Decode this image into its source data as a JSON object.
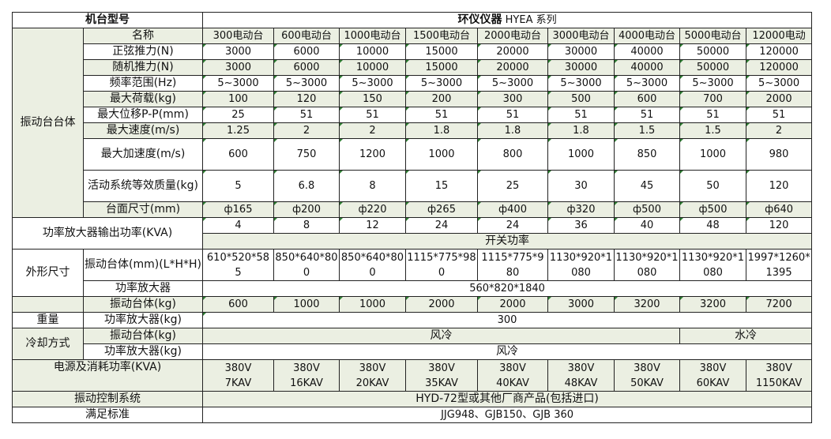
{
  "header": {
    "model_label": "机台型号",
    "series_title_bold": "环仪仪器",
    "series_title_rest": " HYEA 系列"
  },
  "section_shaker": "振动台台体",
  "name_label": "名称",
  "models": [
    "300电动台",
    "600电动台",
    "1000电动台",
    "1500电动台",
    "2000电动台",
    "3000电动台",
    "4000电动台",
    "5000电动台",
    "12000电动"
  ],
  "specs": [
    {
      "label": "正弦推力(N)",
      "values": [
        "3000",
        "6000",
        "10000",
        "15000",
        "20000",
        "30000",
        "40000",
        "50000",
        "120000"
      ]
    },
    {
      "label": "随机推力(N)",
      "values": [
        "3000",
        "6000",
        "10000",
        "15000",
        "20000",
        "30000",
        "40000",
        "50000",
        "120000"
      ]
    },
    {
      "label": "频率范围(Hz)",
      "values": [
        "5~3000",
        "5~3000",
        "5~3000",
        "5~3000",
        "5~3000",
        "5~3000",
        "5~3000",
        "5~3000",
        "5~3000"
      ]
    },
    {
      "label": "最大荷载(kg)",
      "values": [
        "100",
        "120",
        "150",
        "200",
        "300",
        "500",
        "600",
        "700",
        "2000"
      ]
    },
    {
      "label": "最大位移P-P(mm)",
      "values": [
        "25",
        "51",
        "51",
        "51",
        "51",
        "51",
        "51",
        "51",
        "51"
      ]
    },
    {
      "label": "最大速度(m/s)",
      "values": [
        "1.25",
        "2",
        "2",
        "1.8",
        "1.8",
        "1.8",
        "1.5",
        "1.5",
        "2"
      ]
    },
    {
      "label": "最大加速度(m/s)",
      "values": [
        "600",
        "750",
        "1200",
        "1000",
        "800",
        "1000",
        "850",
        "1000",
        "980"
      ]
    },
    {
      "label": "活动系统等效质量(kg)",
      "values": [
        "5",
        "6.8",
        "8",
        "15",
        "25",
        "30",
        "45",
        "50",
        "120"
      ]
    },
    {
      "label": "台面尺寸(mm)",
      "values": [
        "ф165",
        "ф200",
        "ф220",
        "ф265",
        "ф400",
        "ф320",
        "ф500",
        "ф500",
        "ф640"
      ]
    }
  ],
  "amp_power": {
    "label": "功率放大器输出功率(KVA)",
    "values": [
      "4",
      "8",
      "12",
      "24",
      "24",
      "36",
      "40",
      "48",
      "120"
    ],
    "type": "开关功率"
  },
  "dimensions": {
    "label": "外形尺寸",
    "shaker_label": "振动台体(mm)(L*H*H)",
    "shaker_values": [
      "610*520*585",
      "850*640*800",
      "850*640*800",
      "1115*775*980",
      "1115*775*980",
      "1130*920*1080",
      "1130*920*1080",
      "1130*920*1080",
      "1997*1260*1395"
    ],
    "amp_label": "功率放大器",
    "amp_value": "560*820*1840"
  },
  "weight": {
    "label": "重量",
    "shaker_label": "振动台体(kg)",
    "shaker_values": [
      "600",
      "1000",
      "1000",
      "2000",
      "2000",
      "3000",
      "3200",
      "3200",
      "7200"
    ],
    "amp_label": "功率放大器(kg)",
    "amp_value": "300"
  },
  "cooling": {
    "label": "冷却方式",
    "shaker_label": "振动台体(kg)",
    "shaker_air": "风冷",
    "shaker_water": "水冷",
    "amp_label": "功率放大器(kg)",
    "amp_value": "风冷"
  },
  "power_supply": {
    "label": "电源及消耗功率(KVA)",
    "voltage": [
      "380V",
      "380V",
      "380V",
      "380V",
      "380V",
      "380V",
      "380V",
      "380V",
      "380V"
    ],
    "power": [
      "7KAV",
      "16KAV",
      "20KAV",
      "35KAV",
      "40KAV",
      "48KAV",
      "50KAV",
      "60KAV",
      "1150KAV"
    ]
  },
  "control": {
    "label": "振动控制系统",
    "value": "HYD-72型或其他厂商产品(包括进口)"
  },
  "standards": {
    "label": "满足标准",
    "value": "JJG948、GJB150、GJB 360"
  },
  "colors": {
    "shade": "#ebefe2",
    "border": "#222222",
    "corner_marker": "#2e7d32"
  }
}
